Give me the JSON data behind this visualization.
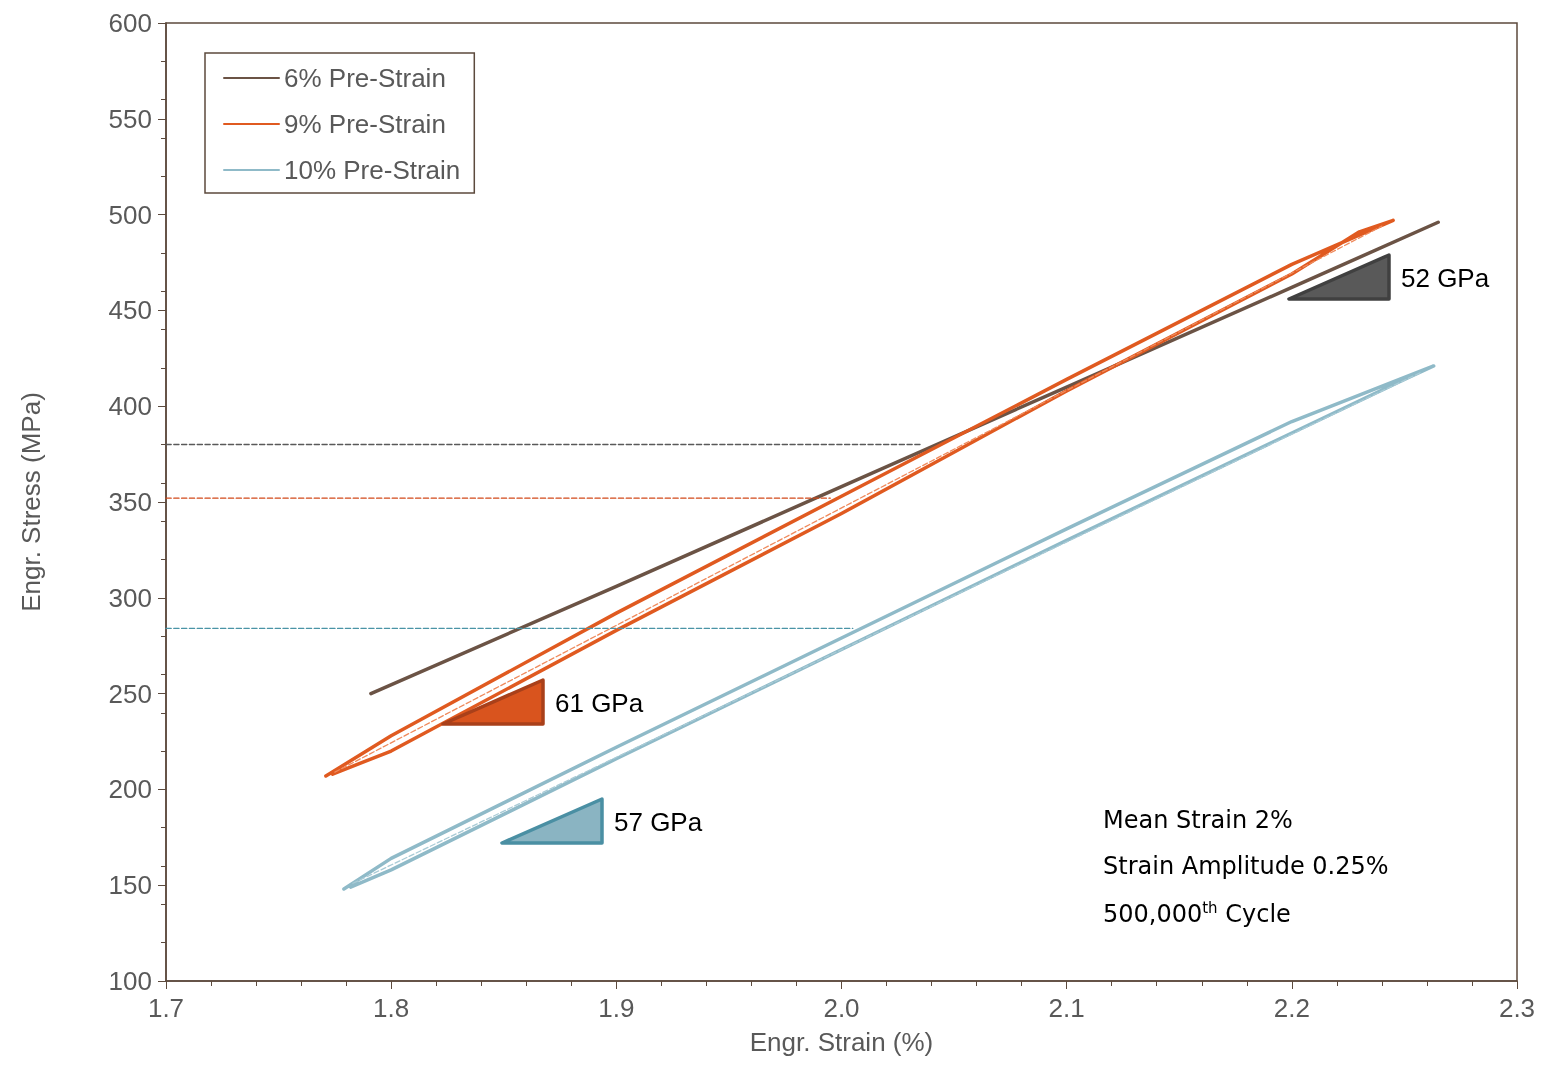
{
  "chart_data": {
    "type": "line",
    "xlabel": "Engr. Strain (%)",
    "ylabel": "Engr. Stress (MPa)",
    "xlim": [
      1.7,
      2.3
    ],
    "xticks": [
      1.7,
      1.8,
      1.9,
      {
        "value": 2,
        "label": "2.0"
      },
      2.1,
      2.2,
      2.3
    ],
    "ylim": [
      100,
      600
    ],
    "yticks": [
      100,
      150,
      200,
      250,
      300,
      350,
      400,
      450,
      500,
      550,
      600
    ],
    "grid": false,
    "legend": "top left",
    "marker": "none",
    "series": [
      {
        "name": "6% Pre-Strain",
        "color": "#6b5345",
        "line_style": "solid",
        "x": [
          1.791,
          1.9,
          2.0,
          2.1,
          2.2,
          2.265
        ],
        "values": [
          250,
          306,
          358,
          410,
          462,
          496
        ]
      },
      {
        "name": "9% Pre-Strain",
        "color": "#e05a20",
        "line_style": "solid",
        "x": [
          1.771,
          1.8,
          1.9,
          2.0,
          2.1,
          2.2,
          2.245,
          2.23,
          2.2,
          2.1,
          2.0,
          1.9,
          1.8,
          1.774
        ],
        "values": [
          207,
          228,
          292,
          353,
          414,
          474,
          497,
          491,
          469,
          408,
          344,
          283,
          220,
          208
        ]
      },
      {
        "name": "10% Pre-Strain",
        "color": "#8fbac8",
        "line_style": "solid",
        "x": [
          1.779,
          1.8,
          1.9,
          2.0,
          2.1,
          2.2,
          2.263,
          2.25,
          2.2,
          2.1,
          2.0,
          1.9,
          1.8,
          1.782
        ],
        "values": [
          148,
          164,
          222,
          279,
          336,
          392,
          421,
          414,
          386,
          330,
          273,
          216,
          158,
          149
        ]
      },
      {
        "color": "#ef8a5c",
        "line_style": "dashed",
        "x": [
          1.775,
          2.24
        ],
        "values": [
          209,
          494
        ]
      },
      {
        "color": "#a9cbd6",
        "line_style": "dashed",
        "x": [
          1.783,
          2.258
        ],
        "values": [
          151,
          418
        ]
      },
      {
        "color": "#595959",
        "line_style": "dashed",
        "x": [
          1.7,
          2.036
        ],
        "values": [
          380,
          380
        ]
      },
      {
        "color": "#d2491a",
        "line_style": "dashed",
        "x": [
          1.7,
          1.995
        ],
        "values": [
          352,
          352
        ]
      },
      {
        "color": "#4a94a6",
        "line_style": "dashed",
        "x": [
          1.7,
          2.005
        ],
        "values": [
          284,
          284
        ]
      }
    ],
    "annotations": [
      "52 GPa",
      "61 GPa",
      "57 GPa",
      "Mean Strain 2%",
      "Strain Amplitude 0.25%",
      "500,000$^{th}$ Cycle"
    ]
  }
}
